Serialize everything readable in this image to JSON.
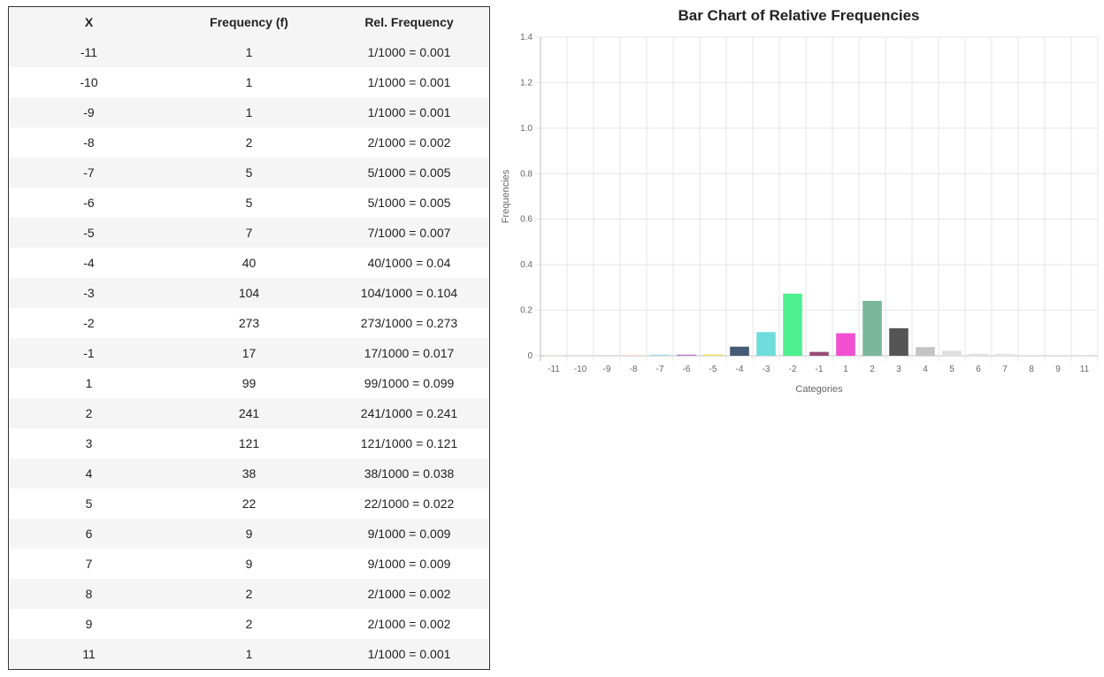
{
  "table": {
    "headers": [
      "X",
      "Frequency (f)",
      "Rel. Frequency"
    ],
    "rows": [
      {
        "x": "-11",
        "f": "1",
        "rel": "1/1000 = 0.001"
      },
      {
        "x": "-10",
        "f": "1",
        "rel": "1/1000 = 0.001"
      },
      {
        "x": "-9",
        "f": "1",
        "rel": "1/1000 = 0.001"
      },
      {
        "x": "-8",
        "f": "2",
        "rel": "2/1000 = 0.002"
      },
      {
        "x": "-7",
        "f": "5",
        "rel": "5/1000 = 0.005"
      },
      {
        "x": "-6",
        "f": "5",
        "rel": "5/1000 = 0.005"
      },
      {
        "x": "-5",
        "f": "7",
        "rel": "7/1000 = 0.007"
      },
      {
        "x": "-4",
        "f": "40",
        "rel": "40/1000 = 0.04"
      },
      {
        "x": "-3",
        "f": "104",
        "rel": "104/1000 = 0.104"
      },
      {
        "x": "-2",
        "f": "273",
        "rel": "273/1000 = 0.273"
      },
      {
        "x": "-1",
        "f": "17",
        "rel": "17/1000 = 0.017"
      },
      {
        "x": "1",
        "f": "99",
        "rel": "99/1000 = 0.099"
      },
      {
        "x": "2",
        "f": "241",
        "rel": "241/1000 = 0.241"
      },
      {
        "x": "3",
        "f": "121",
        "rel": "121/1000 = 0.121"
      },
      {
        "x": "4",
        "f": "38",
        "rel": "38/1000 = 0.038"
      },
      {
        "x": "5",
        "f": "22",
        "rel": "22/1000 = 0.022"
      },
      {
        "x": "6",
        "f": "9",
        "rel": "9/1000 = 0.009"
      },
      {
        "x": "7",
        "f": "9",
        "rel": "9/1000 = 0.009"
      },
      {
        "x": "8",
        "f": "2",
        "rel": "2/1000 = 0.002"
      },
      {
        "x": "9",
        "f": "2",
        "rel": "2/1000 = 0.002"
      },
      {
        "x": "11",
        "f": "1",
        "rel": "1/1000 = 0.001"
      }
    ]
  },
  "chart_data": {
    "type": "bar",
    "title": "Bar Chart of Relative Frequencies",
    "xlabel": "Categories",
    "ylabel": "Frequencies",
    "categories": [
      "-11",
      "-10",
      "-9",
      "-8",
      "-7",
      "-6",
      "-5",
      "-4",
      "-3",
      "-2",
      "-1",
      "1",
      "2",
      "3",
      "4",
      "5",
      "6",
      "7",
      "8",
      "9",
      "11"
    ],
    "values": [
      0.001,
      0.001,
      0.001,
      0.002,
      0.005,
      0.005,
      0.007,
      0.04,
      0.104,
      0.273,
      0.017,
      0.099,
      0.241,
      0.121,
      0.038,
      0.022,
      0.009,
      0.009,
      0.002,
      0.002,
      0.001
    ],
    "colors": [
      "#d9d2c3",
      "#c9c9c9",
      "#bfbfbf",
      "#f3b49a",
      "#a8dcef",
      "#b878c8",
      "#f2e27a",
      "#455a75",
      "#6fdcdc",
      "#4cf08e",
      "#9b4d75",
      "#f24fd0",
      "#79b89a",
      "#555555",
      "#c4c4c4",
      "#dedede",
      "#e3e3e3",
      "#e6e6e6",
      "#cccccc",
      "#cccccc",
      "#cccccc"
    ],
    "ylim": [
      0,
      1.4
    ],
    "yticks": [
      "0",
      "0.2",
      "0.4",
      "0.6",
      "0.8",
      "1.0",
      "1.2",
      "1.4"
    ],
    "ytick_values": [
      0,
      0.2,
      0.4,
      0.6,
      0.8,
      1.0,
      1.2,
      1.4
    ],
    "grid": true,
    "legend": "none"
  }
}
